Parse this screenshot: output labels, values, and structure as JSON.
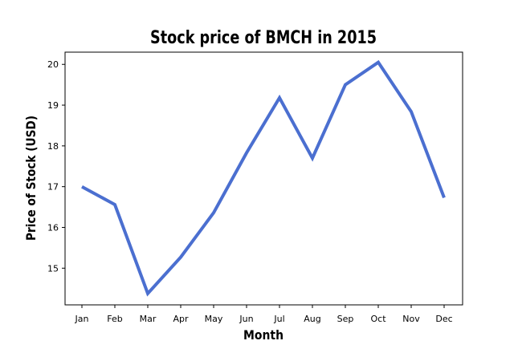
{
  "chart_data": {
    "type": "line",
    "title": "Stock price of BMCH in 2015",
    "xlabel": "Month",
    "ylabel": "Price of Stock (USD)",
    "categories": [
      "Jan",
      "Feb",
      "Mar",
      "Apr",
      "May",
      "Jun",
      "Jul",
      "Aug",
      "Sep",
      "Oct",
      "Nov",
      "Dec"
    ],
    "series": [
      {
        "values": [
          17.0,
          16.56,
          14.38,
          15.27,
          16.36,
          17.83,
          19.18,
          17.7,
          19.5,
          20.05,
          18.84,
          16.73
        ],
        "color": "#4b6fd0"
      }
    ],
    "yticks": [
      15,
      16,
      17,
      18,
      19,
      20
    ],
    "ylim": [
      14.1,
      20.3
    ],
    "grid": false,
    "legend": "none"
  }
}
